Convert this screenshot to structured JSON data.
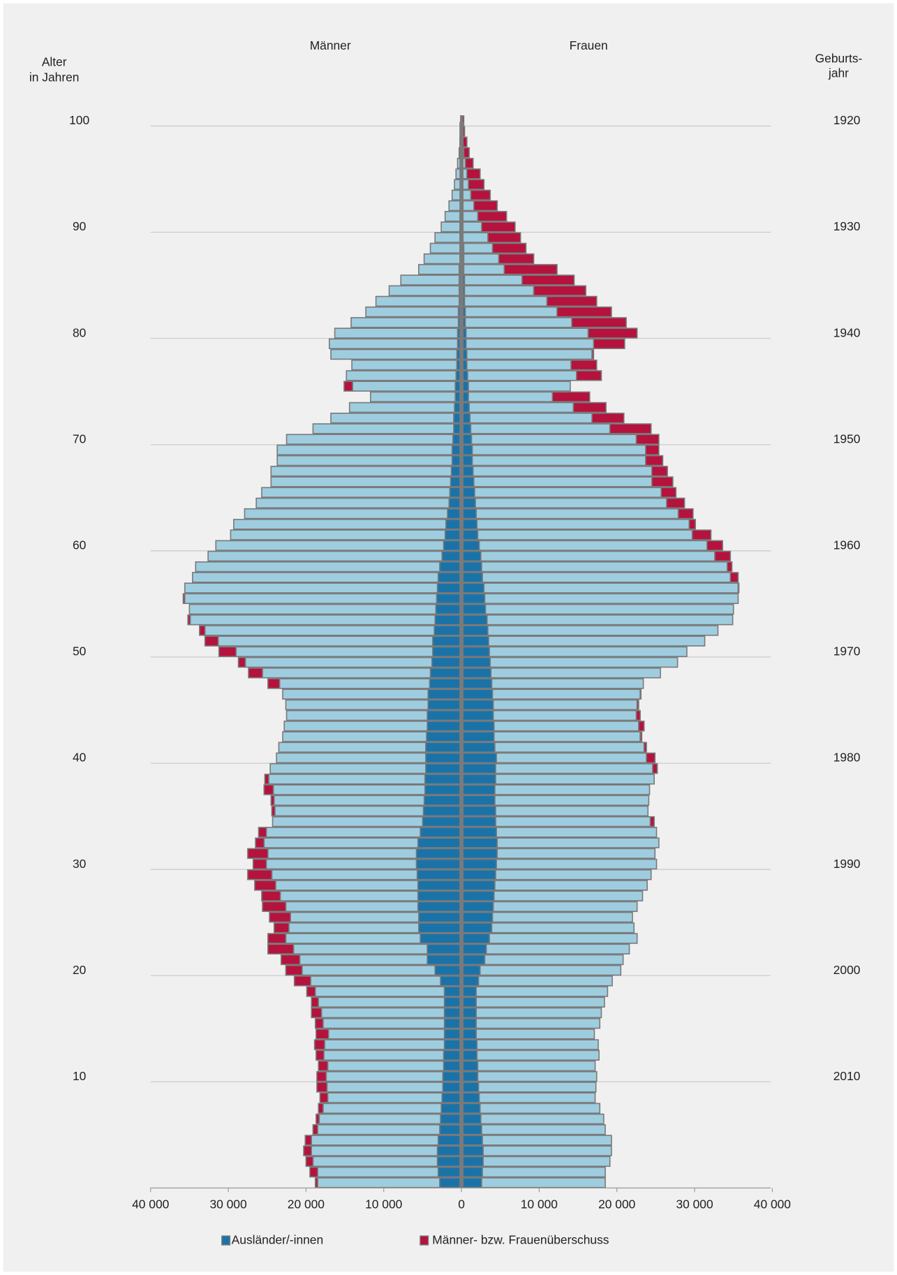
{
  "chart_data": {
    "type": "pyramid",
    "y_label": [
      "Alter",
      "in Jahren"
    ],
    "y2_label": [
      "Geburts-",
      "jahr"
    ],
    "categories": [
      null,
      null,
      null,
      null,
      null,
      null,
      null,
      null,
      null,
      null,
      "10",
      null,
      null,
      null,
      null,
      null,
      null,
      null,
      null,
      null,
      "20",
      null,
      null,
      null,
      null,
      null,
      null,
      null,
      null,
      null,
      "30",
      null,
      null,
      null,
      null,
      null,
      null,
      null,
      null,
      null,
      "40",
      null,
      null,
      null,
      null,
      null,
      null,
      null,
      null,
      null,
      "50",
      null,
      null,
      null,
      null,
      null,
      null,
      null,
      null,
      null,
      "60",
      null,
      null,
      null,
      null,
      null,
      null,
      null,
      null,
      null,
      "70",
      null,
      null,
      null,
      null,
      null,
      null,
      null,
      null,
      null,
      "80",
      null,
      null,
      null,
      null,
      null,
      null,
      null,
      null,
      null,
      "90",
      null,
      null,
      null,
      null,
      null,
      null,
      null,
      null,
      null,
      "100"
    ],
    "y2lim": [
      2020,
      1919
    ],
    "y2ticks": [
      1920,
      1930,
      1940,
      1950,
      1960,
      1970,
      1980,
      1990,
      2000,
      2010
    ],
    "xlim": [
      0,
      40000
    ],
    "xticks": [
      0,
      {
        "value": 10000,
        "label": "10 000"
      },
      {
        "value": 20000,
        "label": "20 000"
      },
      {
        "value": 30000,
        "label": "30 000"
      },
      {
        "value": 40000,
        "label": "40 000"
      }
    ],
    "series": [
      {
        "name": "Männer",
        "color": "#9fcde0",
        "values": [
          18800,
          19500,
          20000,
          20300,
          20100,
          19100,
          18700,
          18400,
          18200,
          18600,
          18600,
          18400,
          18700,
          18900,
          18700,
          18800,
          19300,
          19300,
          19900,
          21500,
          22600,
          23200,
          24900,
          24900,
          24100,
          24700,
          25600,
          25700,
          26600,
          27500,
          26800,
          27500,
          26500,
          26100,
          24300,
          24400,
          24500,
          25400,
          25300,
          24600,
          23800,
          23500,
          23000,
          22800,
          22500,
          22600,
          23000,
          24900,
          27400,
          28700,
          31200,
          33000,
          33700,
          35200,
          35000,
          35800,
          35600,
          34600,
          34200,
          32600,
          31600,
          29700,
          29300,
          27900,
          26400,
          25700,
          24500,
          24500,
          23700,
          23700,
          22500,
          19100,
          16800,
          14400,
          11700,
          15100,
          14800,
          14100,
          16800,
          17000,
          16300,
          14200,
          12300,
          11000,
          9300,
          7800,
          5500,
          4800,
          4000,
          3400,
          2600,
          2100,
          1600,
          1200,
          900,
          700,
          500,
          300,
          200,
          100,
          100
        ]
      },
      {
        "name": "Frauen",
        "color": "#9fcde0",
        "values": [
          18500,
          18500,
          19100,
          19300,
          19300,
          18500,
          18300,
          17800,
          17200,
          17300,
          17400,
          17200,
          17700,
          17600,
          17100,
          17800,
          18000,
          18400,
          18800,
          19400,
          20500,
          20800,
          21600,
          22600,
          22200,
          22000,
          22600,
          23300,
          23900,
          24400,
          25100,
          24900,
          25400,
          25100,
          24800,
          24000,
          24100,
          24200,
          24800,
          25200,
          24900,
          23800,
          23200,
          23500,
          23000,
          22800,
          23100,
          23400,
          25600,
          27800,
          29000,
          31300,
          33000,
          34900,
          35000,
          35600,
          35700,
          35600,
          34800,
          34600,
          33600,
          32100,
          30100,
          29800,
          28700,
          27600,
          27200,
          26500,
          25900,
          25400,
          25400,
          24400,
          20900,
          18600,
          16500,
          14000,
          18000,
          17400,
          17000,
          21000,
          22600,
          21200,
          19300,
          17400,
          16000,
          14500,
          12300,
          9300,
          8300,
          7600,
          6900,
          5800,
          4600,
          3700,
          2900,
          2400,
          1500,
          1000,
          700,
          400,
          300
        ]
      }
    ],
    "foreign": {
      "name": "Ausländer/-innen",
      "color": "#1a73a8",
      "men": [
        2800,
        3000,
        3100,
        3100,
        3000,
        2800,
        2700,
        2600,
        2500,
        2400,
        2400,
        2300,
        2300,
        2200,
        2200,
        2200,
        2200,
        2200,
        2200,
        2700,
        3400,
        4400,
        4400,
        5300,
        5500,
        5500,
        5600,
        5600,
        5600,
        5700,
        5800,
        5800,
        5600,
        5300,
        5000,
        4900,
        4800,
        4700,
        4700,
        4600,
        4600,
        4600,
        4500,
        4400,
        4400,
        4300,
        4300,
        4100,
        4000,
        3800,
        3700,
        3700,
        3500,
        3400,
        3300,
        3200,
        3100,
        3000,
        2800,
        2500,
        2300,
        2100,
        2000,
        1800,
        1600,
        1500,
        1400,
        1300,
        1200,
        1200,
        1100,
        1000,
        1000,
        900,
        800,
        800,
        700,
        600,
        600,
        500,
        500,
        400,
        400,
        300,
        300,
        300,
        300,
        200,
        200,
        200,
        200,
        200,
        100,
        100,
        100,
        100,
        100,
        100,
        100,
        100,
        100
      ],
      "women": [
        2600,
        2700,
        2800,
        2800,
        2700,
        2600,
        2500,
        2400,
        2300,
        2200,
        2100,
        2100,
        2000,
        2000,
        1900,
        1900,
        1900,
        1900,
        1900,
        2200,
        2400,
        3000,
        3200,
        3600,
        3900,
        4000,
        4100,
        4200,
        4300,
        4400,
        4500,
        4600,
        4600,
        4500,
        4400,
        4400,
        4300,
        4300,
        4400,
        4400,
        4500,
        4300,
        4200,
        4200,
        4100,
        4100,
        4000,
        3900,
        3800,
        3700,
        3600,
        3500,
        3400,
        3300,
        3100,
        3000,
        2900,
        2700,
        2600,
        2500,
        2300,
        2100,
        2000,
        1900,
        1800,
        1700,
        1600,
        1500,
        1400,
        1400,
        1300,
        1200,
        1100,
        1000,
        900,
        900,
        800,
        700,
        700,
        600,
        600,
        500,
        500,
        400,
        400,
        400,
        300,
        300,
        300,
        200,
        200,
        200,
        200,
        100,
        100,
        100,
        100,
        100,
        100,
        100,
        100
      ]
    },
    "surplus": {
      "name": "Männer- bzw. Frauenüberschuss",
      "color": "#b5123e"
    },
    "grid": true
  }
}
